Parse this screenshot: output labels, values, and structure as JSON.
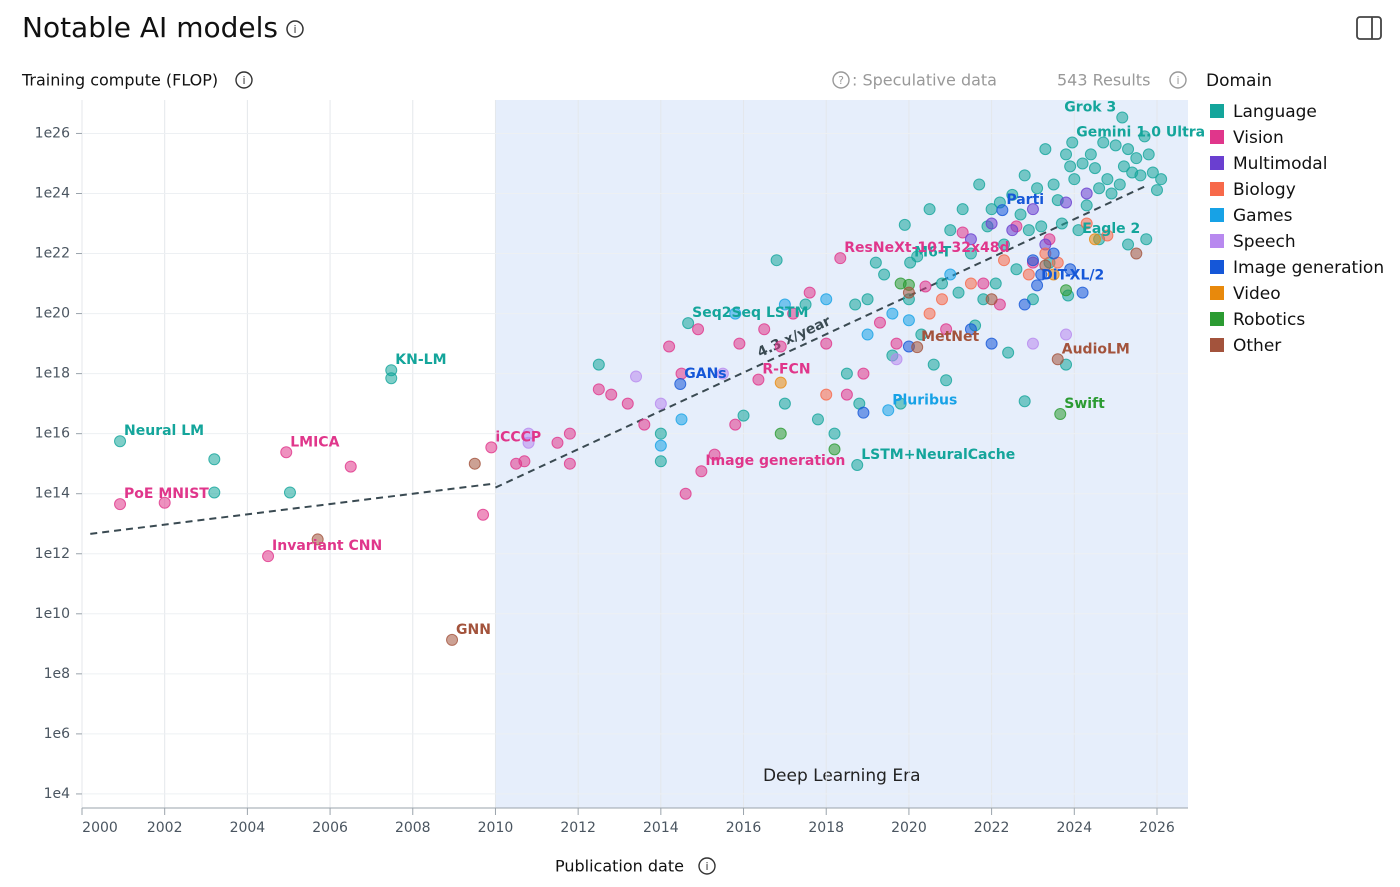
{
  "chart_data": {
    "type": "scatter",
    "title": "Notable AI models",
    "y_label": "Training compute (FLOP)",
    "x_label": "Publication date",
    "speculative_note": ": Speculative data",
    "results": "543 Results",
    "legend_title": "Domain",
    "y_scale": "log",
    "grid": true,
    "xlim": [
      2000,
      2026.75
    ],
    "xticks": [
      2000,
      2002,
      2004,
      2006,
      2008,
      2010,
      2012,
      2014,
      2016,
      2018,
      2020,
      2022,
      2024,
      2026
    ],
    "ylim": [
      3400,
      1.3e+27
    ],
    "yticks": [
      {
        "value": 10000.0,
        "label": "1e4"
      },
      {
        "value": 1000000.0,
        "label": "1e6"
      },
      {
        "value": 100000000.0,
        "label": "1e8"
      },
      {
        "value": 10000000000.0,
        "label": "1e10"
      },
      {
        "value": 1000000000000.0,
        "label": "1e12"
      },
      {
        "value": 100000000000000.0,
        "label": "1e14"
      },
      {
        "value": 1e+16,
        "label": "1e16"
      },
      {
        "value": 1e+18,
        "label": "1e18"
      },
      {
        "value": 1e+20,
        "label": "1e20"
      },
      {
        "value": 1e+22,
        "label": "1e22"
      },
      {
        "value": 1e+24,
        "label": "1e24"
      },
      {
        "value": 1e+26,
        "label": "1e26"
      }
    ],
    "region": {
      "label": "Deep Learning Era",
      "x_start": 2010,
      "color": "#e6eefb"
    },
    "trend_lines": [
      {
        "x": [
          2000.2,
          2010
        ],
        "values": [
          4600000000000.0,
          220000000000000.0
        ]
      },
      {
        "x": [
          2010,
          2025.7
        ],
        "values": [
          160000000000000.0,
          1.7e+24
        ]
      }
    ],
    "trend_label": "4.3 x/year",
    "series": [
      {
        "name": "Language",
        "color": "#14a59b",
        "points": [
          {
            "x": 2000.92,
            "y": 5600000000000000.0,
            "label": "Neural LM"
          },
          {
            "x": 2007.48,
            "y": 1.3e+18,
            "label": "KN-LM"
          },
          {
            "x": 2014.66,
            "y": 4.8e+19,
            "label": "Seq2Seq LSTM"
          },
          {
            "x": 2018.75,
            "y": 900000000000000.0,
            "label": "LSTM+NeuralCache"
          },
          {
            "x": 2020.03,
            "y": 5e+21,
            "label": "M6-T"
          },
          {
            "x": 2023.95,
            "y": 5e+25,
            "label": "Gemini 1.0 Ultra"
          },
          {
            "x": 2025.16,
            "y": 3.4e+26,
            "label": "Grok 3"
          },
          {
            "x": 2025.74,
            "y": 3e+22,
            "label": "Eagle 2"
          },
          {
            "x": 2007.48,
            "y": 7e+17
          },
          {
            "x": 2003.2,
            "y": 1400000000000000.0
          },
          {
            "x": 2003.2,
            "y": 110000000000000.0
          },
          {
            "x": 2005.03,
            "y": 110000000000000.0
          },
          {
            "x": 2012.5,
            "y": 2e+18
          },
          {
            "x": 2014,
            "y": 1e+16
          },
          {
            "x": 2014,
            "y": 1200000000000000.0
          },
          {
            "x": 2016,
            "y": 4e+16
          },
          {
            "x": 2016.8,
            "y": 6e+21
          },
          {
            "x": 2017,
            "y": 1e+17
          },
          {
            "x": 2017.5,
            "y": 2e+20
          },
          {
            "x": 2017.8,
            "y": 3e+16
          },
          {
            "x": 2018.2,
            "y": 1e+16
          },
          {
            "x": 2018.5,
            "y": 1e+18
          },
          {
            "x": 2018.7,
            "y": 2e+20
          },
          {
            "x": 2018.8,
            "y": 1e+17
          },
          {
            "x": 2019,
            "y": 3e+20
          },
          {
            "x": 2019.2,
            "y": 5e+21
          },
          {
            "x": 2019.4,
            "y": 2e+21
          },
          {
            "x": 2019.6,
            "y": 4e+18
          },
          {
            "x": 2019.8,
            "y": 1e+17
          },
          {
            "x": 2019.9,
            "y": 9e+22
          },
          {
            "x": 2020,
            "y": 3e+20
          },
          {
            "x": 2020.2,
            "y": 8e+21
          },
          {
            "x": 2020.3,
            "y": 2e+19
          },
          {
            "x": 2020.5,
            "y": 3e+23
          },
          {
            "x": 2020.6,
            "y": 2e+18
          },
          {
            "x": 2020.8,
            "y": 1e+21
          },
          {
            "x": 2021,
            "y": 6e+22
          },
          {
            "x": 2021.2,
            "y": 5e+20
          },
          {
            "x": 2021.3,
            "y": 3e+23
          },
          {
            "x": 2021.5,
            "y": 1e+22
          },
          {
            "x": 2021.6,
            "y": 4e+19
          },
          {
            "x": 2021.7,
            "y": 2e+24
          },
          {
            "x": 2021.9,
            "y": 8e+22
          },
          {
            "x": 2022,
            "y": 3e+23
          },
          {
            "x": 2022.1,
            "y": 1e+21
          },
          {
            "x": 2022.2,
            "y": 5e+23
          },
          {
            "x": 2022.3,
            "y": 2e+22
          },
          {
            "x": 2022.4,
            "y": 5e+18
          },
          {
            "x": 2022.5,
            "y": 9e+23
          },
          {
            "x": 2022.6,
            "y": 3e+21
          },
          {
            "x": 2022.7,
            "y": 2e+23
          },
          {
            "x": 2022.8,
            "y": 4e+24
          },
          {
            "x": 2022.9,
            "y": 6e+22
          },
          {
            "x": 2023,
            "y": 3e+20
          },
          {
            "x": 2023.1,
            "y": 1.5e+24
          },
          {
            "x": 2023.2,
            "y": 8e+22
          },
          {
            "x": 2023.3,
            "y": 3e+25
          },
          {
            "x": 2023.4,
            "y": 5e+21
          },
          {
            "x": 2023.5,
            "y": 2e+24
          },
          {
            "x": 2023.6,
            "y": 6e+23
          },
          {
            "x": 2023.7,
            "y": 1e+23
          },
          {
            "x": 2023.8,
            "y": 2e+25
          },
          {
            "x": 2023.85,
            "y": 4e+20
          },
          {
            "x": 2023.9,
            "y": 8e+24
          },
          {
            "x": 2024,
            "y": 3e+24
          },
          {
            "x": 2024.1,
            "y": 6e+22
          },
          {
            "x": 2024.2,
            "y": 1e+25
          },
          {
            "x": 2024.3,
            "y": 4e+23
          },
          {
            "x": 2024.4,
            "y": 2e+25
          },
          {
            "x": 2024.5,
            "y": 7e+24
          },
          {
            "x": 2024.6,
            "y": 1.5e+24
          },
          {
            "x": 2024.7,
            "y": 5e+25
          },
          {
            "x": 2024.8,
            "y": 3e+24
          },
          {
            "x": 2024.9,
            "y": 1e+24
          },
          {
            "x": 2025,
            "y": 4e+25
          },
          {
            "x": 2025.1,
            "y": 2e+24
          },
          {
            "x": 2025.2,
            "y": 8e+24
          },
          {
            "x": 2025.3,
            "y": 3e+25
          },
          {
            "x": 2025.4,
            "y": 5e+24
          },
          {
            "x": 2025.5,
            "y": 1.5e+25
          },
          {
            "x": 2025.6,
            "y": 4e+24
          },
          {
            "x": 2025.7,
            "y": 8e+25
          },
          {
            "x": 2025.8,
            "y": 2e+25
          },
          {
            "x": 2025.9,
            "y": 5e+24
          },
          {
            "x": 2026,
            "y": 1.3e+24
          },
          {
            "x": 2026.1,
            "y": 3e+24
          },
          {
            "x": 2022.8,
            "y": 1.2e+17
          },
          {
            "x": 2023.8,
            "y": 2e+18
          },
          {
            "x": 2021.8,
            "y": 3e+20
          },
          {
            "x": 2020.9,
            "y": 6e+17
          },
          {
            "x": 2024.6,
            "y": 3e+22
          },
          {
            "x": 2025.3,
            "y": 2e+22
          }
        ]
      },
      {
        "name": "Vision",
        "color": "#e0368b",
        "points": [
          {
            "x": 2000.92,
            "y": 45000000000000.0,
            "label": "PoE MNIST"
          },
          {
            "x": 2004.94,
            "y": 2400000000000000.0,
            "label": "LMICA"
          },
          {
            "x": 2004.5,
            "y": 830000000000.0,
            "label": "Invariant CNN"
          },
          {
            "x": 2009.9,
            "y": 3500000000000000.0,
            "label": "iCCCP"
          },
          {
            "x": 2014.98,
            "y": 560000000000000.0,
            "label": "Image generation"
          },
          {
            "x": 2016.36,
            "y": 6.3e+17,
            "label": "R-FCN"
          },
          {
            "x": 2018.34,
            "y": 7e+21,
            "label": "ResNeXt-101 32x48d"
          },
          {
            "x": 2010.5,
            "y": 1000000000000000.0
          },
          {
            "x": 2010.7,
            "y": 1200000000000000.0
          },
          {
            "x": 2011.5,
            "y": 5000000000000000.0
          },
          {
            "x": 2011.8,
            "y": 1e+16
          },
          {
            "x": 2011.8,
            "y": 1000000000000000.0
          },
          {
            "x": 2012.5,
            "y": 3e+17
          },
          {
            "x": 2012.8,
            "y": 2e+17
          },
          {
            "x": 2013.2,
            "y": 1e+17
          },
          {
            "x": 2013.6,
            "y": 2e+16
          },
          {
            "x": 2014.2,
            "y": 8e+18
          },
          {
            "x": 2014.5,
            "y": 1e+18
          },
          {
            "x": 2014.6,
            "y": 100000000000000.0
          },
          {
            "x": 2014.9,
            "y": 3e+19
          },
          {
            "x": 2015.3,
            "y": 2000000000000000.0
          },
          {
            "x": 2015.8,
            "y": 2e+16
          },
          {
            "x": 2015.9,
            "y": 1e+19
          },
          {
            "x": 2016.5,
            "y": 3e+19
          },
          {
            "x": 2016.9,
            "y": 8e+18
          },
          {
            "x": 2017.2,
            "y": 1e+20
          },
          {
            "x": 2017.6,
            "y": 5e+20
          },
          {
            "x": 2018,
            "y": 1e+19
          },
          {
            "x": 2018.5,
            "y": 2e+17
          },
          {
            "x": 2018.9,
            "y": 1e+18
          },
          {
            "x": 2019.3,
            "y": 5e+19
          },
          {
            "x": 2019.7,
            "y": 1e+19
          },
          {
            "x": 2020.4,
            "y": 8e+20
          },
          {
            "x": 2020.9,
            "y": 3e+19
          },
          {
            "x": 2021.3,
            "y": 5e+22
          },
          {
            "x": 2021.8,
            "y": 1e+21
          },
          {
            "x": 2022.2,
            "y": 2e+20
          },
          {
            "x": 2022.6,
            "y": 8e+22
          },
          {
            "x": 2023,
            "y": 5e+21
          },
          {
            "x": 2023.4,
            "y": 3e+22
          },
          {
            "x": 2009.7,
            "y": 20000000000000.0
          },
          {
            "x": 2006.5,
            "y": 800000000000000.0
          },
          {
            "x": 2002,
            "y": 50000000000000.0
          }
        ]
      },
      {
        "name": "Multimodal",
        "color": "#6a3fd0",
        "points": [
          {
            "x": 2021.5,
            "y": 3e+22
          },
          {
            "x": 2022,
            "y": 1e+23
          },
          {
            "x": 2022.5,
            "y": 6e+22
          },
          {
            "x": 2023,
            "y": 3e+23
          },
          {
            "x": 2023.3,
            "y": 2e+22
          },
          {
            "x": 2023.8,
            "y": 5e+23
          },
          {
            "x": 2024.3,
            "y": 1e+24
          }
        ]
      },
      {
        "name": "Biology",
        "color": "#f7694a",
        "points": [
          {
            "x": 2018,
            "y": 2e+17
          },
          {
            "x": 2020.5,
            "y": 1e+20
          },
          {
            "x": 2020.8,
            "y": 3e+20
          },
          {
            "x": 2021.5,
            "y": 1e+21
          },
          {
            "x": 2022.3,
            "y": 6e+21
          },
          {
            "x": 2022.9,
            "y": 2e+21
          },
          {
            "x": 2023.3,
            "y": 1e+22
          },
          {
            "x": 2023.6,
            "y": 5e+21
          },
          {
            "x": 2024.3,
            "y": 1e+23
          },
          {
            "x": 2024.8,
            "y": 4e+22
          }
        ]
      },
      {
        "name": "Games",
        "color": "#17a2e6",
        "points": [
          {
            "x": 2019.5,
            "y": 6e+16,
            "label": "Pluribus"
          },
          {
            "x": 2014.5,
            "y": 3e+16
          },
          {
            "x": 2014,
            "y": 4000000000000000.0
          },
          {
            "x": 2015.8,
            "y": 1e+20
          },
          {
            "x": 2017,
            "y": 2e+20
          },
          {
            "x": 2018,
            "y": 3e+20
          },
          {
            "x": 2019.6,
            "y": 1e+20
          },
          {
            "x": 2020,
            "y": 6e+19
          },
          {
            "x": 2021,
            "y": 2e+21
          },
          {
            "x": 2019,
            "y": 2e+19
          }
        ]
      },
      {
        "name": "Speech",
        "color": "#b889ef",
        "points": [
          {
            "x": 2010.8,
            "y": 1e+16
          },
          {
            "x": 2010.8,
            "y": 5000000000000000.0
          },
          {
            "x": 2013.4,
            "y": 8e+17
          },
          {
            "x": 2014,
            "y": 1e+17
          },
          {
            "x": 2015.5,
            "y": 1e+18
          },
          {
            "x": 2019.7,
            "y": 3e+18
          },
          {
            "x": 2023.8,
            "y": 2e+19
          },
          {
            "x": 2023,
            "y": 1e+19
          }
        ]
      },
      {
        "name": "Image generation",
        "color": "#1557d8",
        "points": [
          {
            "x": 2014.47,
            "y": 4.5e+17,
            "label": "GANs"
          },
          {
            "x": 2022.26,
            "y": 2.8e+23,
            "label": "Parti"
          },
          {
            "x": 2023.1,
            "y": 8.7e+20,
            "label": "DiT-XL/2"
          },
          {
            "x": 2018.9,
            "y": 5e+16
          },
          {
            "x": 2020,
            "y": 8e+18
          },
          {
            "x": 2021.5,
            "y": 3e+19
          },
          {
            "x": 2022,
            "y": 1e+19
          },
          {
            "x": 2022.8,
            "y": 2e+20
          },
          {
            "x": 2023,
            "y": 6e+21
          },
          {
            "x": 2023.2,
            "y": 2e+21
          },
          {
            "x": 2023.5,
            "y": 1e+22
          },
          {
            "x": 2023.9,
            "y": 3e+21
          },
          {
            "x": 2024.2,
            "y": 5e+20
          }
        ]
      },
      {
        "name": "Video",
        "color": "#e8890c",
        "points": [
          {
            "x": 2023.5,
            "y": 2e+21
          },
          {
            "x": 2024.5,
            "y": 3e+22
          },
          {
            "x": 2016.9,
            "y": 5e+17
          }
        ]
      },
      {
        "name": "Robotics",
        "color": "#2b9b32",
        "points": [
          {
            "x": 2023.66,
            "y": 4.5e+16,
            "label": "Swift"
          },
          {
            "x": 2019.8,
            "y": 1e+21
          },
          {
            "x": 2020,
            "y": 9e+20
          },
          {
            "x": 2023.8,
            "y": 6e+20
          },
          {
            "x": 2016.9,
            "y": 1e+16
          },
          {
            "x": 2018.2,
            "y": 3000000000000000.0
          }
        ]
      },
      {
        "name": "Other",
        "color": "#a3533c",
        "points": [
          {
            "x": 2008.95,
            "y": 1350000000.0,
            "label": "GNN"
          },
          {
            "x": 2020.2,
            "y": 7.6e+18,
            "label": "MetNet"
          },
          {
            "x": 2023.6,
            "y": 3e+18,
            "label": "AudioLM"
          },
          {
            "x": 2005.7,
            "y": 3000000000000.0
          },
          {
            "x": 2009.5,
            "y": 1000000000000000.0
          },
          {
            "x": 2025.5,
            "y": 1e+22
          },
          {
            "x": 2023.3,
            "y": 4e+21
          },
          {
            "x": 2020,
            "y": 5e+20
          },
          {
            "x": 2022,
            "y": 3e+20
          }
        ]
      }
    ]
  }
}
